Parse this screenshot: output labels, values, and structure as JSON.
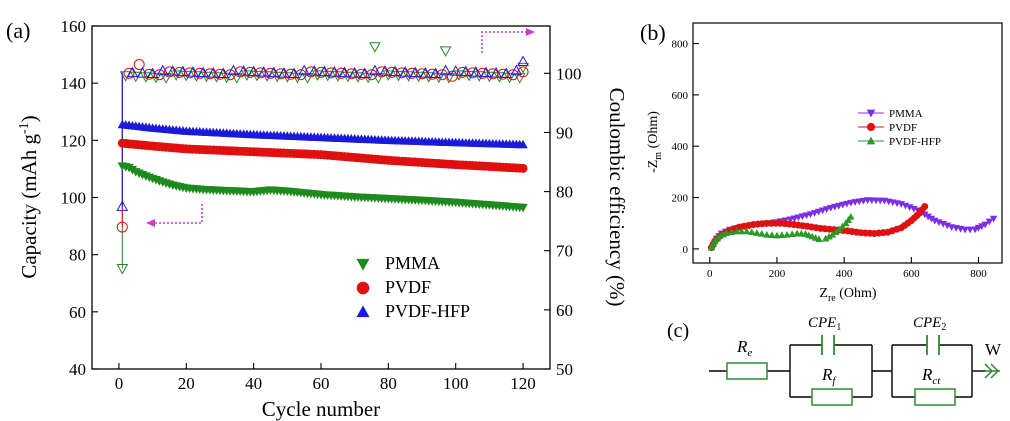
{
  "panels": {
    "a": {
      "label": "(a)"
    },
    "b": {
      "label": "(b)"
    },
    "c": {
      "label": "(c)"
    }
  },
  "chart_data": [
    {
      "id": "a",
      "type": "scatter",
      "xlabel": "Cycle number",
      "ylabel_left": "Capacity (mAh g",
      "ylabel_left_sup": "-1",
      "ylabel_left_close": ")",
      "ylabel_right": "Coulombic efficiency (%)",
      "xlim": [
        -8,
        128
      ],
      "ylim_left": [
        40,
        160
      ],
      "ylim_right": [
        50,
        108
      ],
      "xticks": [
        0,
        20,
        40,
        60,
        80,
        100,
        120
      ],
      "yticks_left": [
        40,
        60,
        80,
        100,
        120,
        140,
        160
      ],
      "yticks_right": [
        50,
        60,
        70,
        80,
        90,
        100
      ],
      "legend_position": "lower-center",
      "series": [
        {
          "name": "PMMA",
          "color": "#1e8a1e",
          "marker": "triangle-down",
          "capacity": {
            "start": [
              1,
              111
            ],
            "end": [
              120,
              96.5
            ],
            "points": [
              [
                1,
                111
              ],
              [
                3,
                110.5
              ],
              [
                5,
                109
              ],
              [
                8,
                107.5
              ],
              [
                12,
                105.8
              ],
              [
                16,
                104.3
              ],
              [
                20,
                103.3
              ],
              [
                25,
                102.8
              ],
              [
                30,
                102.5
              ],
              [
                40,
                102
              ],
              [
                45,
                102.6
              ],
              [
                50,
                102.2
              ],
              [
                60,
                101
              ],
              [
                70,
                100.2
              ],
              [
                80,
                99.6
              ],
              [
                90,
                99
              ],
              [
                100,
                98.3
              ],
              [
                110,
                97.4
              ],
              [
                120,
                96.5
              ]
            ]
          },
          "efficiency": {
            "first": [
              1,
              67
            ],
            "value": 99.5,
            "outliers": [
              [
                76,
                104.5
              ],
              [
                97,
                103.8
              ],
              [
                120,
                101
              ]
            ]
          }
        },
        {
          "name": "PVDF",
          "color": "#e01010",
          "marker": "circle",
          "capacity": {
            "start": [
              1,
              119
            ],
            "end": [
              120,
              110.2
            ],
            "points": [
              [
                1,
                119
              ],
              [
                10,
                118
              ],
              [
                20,
                117
              ],
              [
                40,
                116
              ],
              [
                60,
                115
              ],
              [
                80,
                113
              ],
              [
                100,
                111.5
              ],
              [
                120,
                110.2
              ]
            ]
          },
          "efficiency": {
            "first": [
              1,
              74
            ],
            "value": 100,
            "outliers": [
              [
                6,
                101.5
              ],
              [
                99,
                99.5
              ]
            ]
          }
        },
        {
          "name": "PVDF-HFP",
          "color": "#1a1ad8",
          "marker": "triangle-up",
          "capacity": {
            "start": [
              1,
              125.5
            ],
            "end": [
              120,
              118.5
            ],
            "points": [
              [
                1,
                125.5
              ],
              [
                10,
                124.3
              ],
              [
                20,
                123.2
              ],
              [
                40,
                122
              ],
              [
                60,
                121
              ],
              [
                80,
                120
              ],
              [
                100,
                119.2
              ],
              [
                120,
                118.5
              ]
            ]
          },
          "efficiency": {
            "first": [
              1,
              77.5
            ],
            "value": 100.2,
            "outliers": [
              [
                120,
                102
              ]
            ]
          }
        }
      ]
    },
    {
      "id": "b",
      "type": "scatter",
      "xlabel": "Z",
      "xlabel_sub": "re",
      "xlabel_unit": " (Ohm)",
      "ylabel": "-Z",
      "ylabel_sub": "m",
      "ylabel_unit": " (Ohm)",
      "xlim": [
        -50,
        870
      ],
      "ylim": [
        -55,
        880
      ],
      "xticks": [
        0,
        200,
        400,
        600,
        800
      ],
      "yticks": [
        0,
        200,
        400,
        600,
        800
      ],
      "legend_position": "middle-right",
      "series": [
        {
          "name": "PMMA",
          "color": "#7b2fe8",
          "marker": "triangle-down",
          "points": [
            [
              10,
              10
            ],
            [
              20,
              40
            ],
            [
              35,
              60
            ],
            [
              60,
              75
            ],
            [
              90,
              85
            ],
            [
              130,
              93
            ],
            [
              180,
              100
            ],
            [
              240,
              115
            ],
            [
              300,
              135
            ],
            [
              360,
              160
            ],
            [
              420,
              180
            ],
            [
              470,
              190
            ],
            [
              520,
              188
            ],
            [
              570,
              175
            ],
            [
              620,
              150
            ],
            [
              670,
              110
            ],
            [
              720,
              85
            ],
            [
              760,
              75
            ],
            [
              790,
              76
            ],
            [
              820,
              95
            ],
            [
              845,
              118
            ]
          ]
        },
        {
          "name": "PVDF",
          "color": "#e01010",
          "marker": "circle",
          "points": [
            [
              5,
              5
            ],
            [
              15,
              30
            ],
            [
              30,
              50
            ],
            [
              55,
              70
            ],
            [
              90,
              85
            ],
            [
              130,
              95
            ],
            [
              170,
              100
            ],
            [
              210,
              100
            ],
            [
              250,
              95
            ],
            [
              290,
              88
            ],
            [
              330,
              80
            ],
            [
              370,
              75
            ],
            [
              410,
              70
            ],
            [
              450,
              63
            ],
            [
              490,
              60
            ],
            [
              530,
              65
            ],
            [
              570,
              82
            ],
            [
              600,
              110
            ],
            [
              625,
              140
            ],
            [
              640,
              165
            ]
          ]
        },
        {
          "name": "PVDF-HFP",
          "color": "#2a9a2a",
          "marker": "triangle-up",
          "points": [
            [
              5,
              5
            ],
            [
              15,
              30
            ],
            [
              30,
              50
            ],
            [
              50,
              62
            ],
            [
              80,
              68
            ],
            [
              110,
              68
            ],
            [
              140,
              62
            ],
            [
              170,
              55
            ],
            [
              200,
              52
            ],
            [
              230,
              55
            ],
            [
              260,
              60
            ],
            [
              285,
              58
            ],
            [
              305,
              48
            ],
            [
              325,
              38
            ],
            [
              345,
              40
            ],
            [
              365,
              55
            ],
            [
              385,
              75
            ],
            [
              405,
              100
            ],
            [
              420,
              125
            ]
          ]
        }
      ]
    }
  ],
  "circuit": {
    "R_e": {
      "base": "R",
      "sub": "e"
    },
    "R_f": {
      "base": "R",
      "sub": "f"
    },
    "R_ct": {
      "base": "R",
      "sub": "ct"
    },
    "CPE1": {
      "base": "CPE",
      "sub": "1"
    },
    "CPE2": {
      "base": "CPE",
      "sub": "2"
    },
    "W": "W",
    "colors": {
      "resistor": "#2e8b2e",
      "capacitor": "#2e8b2e",
      "warburg": "#2e8b2e"
    }
  }
}
